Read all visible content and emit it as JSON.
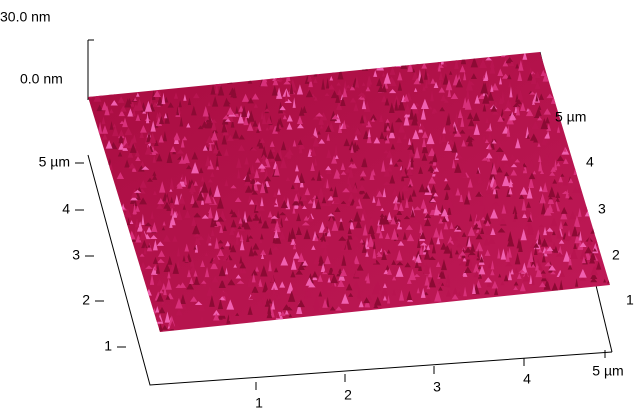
{
  "z_axis": {
    "ticks": [
      "30.0 nm",
      "0.0 nm"
    ]
  },
  "left_axis": {
    "ticks": [
      "5 µm",
      "4",
      "3",
      "2",
      "1"
    ]
  },
  "bottom_axis": {
    "ticks": [
      "1",
      "2",
      "3",
      "4",
      "5 µm"
    ]
  },
  "right_axis": {
    "ticks": [
      "5 µm",
      "4",
      "3",
      "2",
      "1"
    ]
  }
}
